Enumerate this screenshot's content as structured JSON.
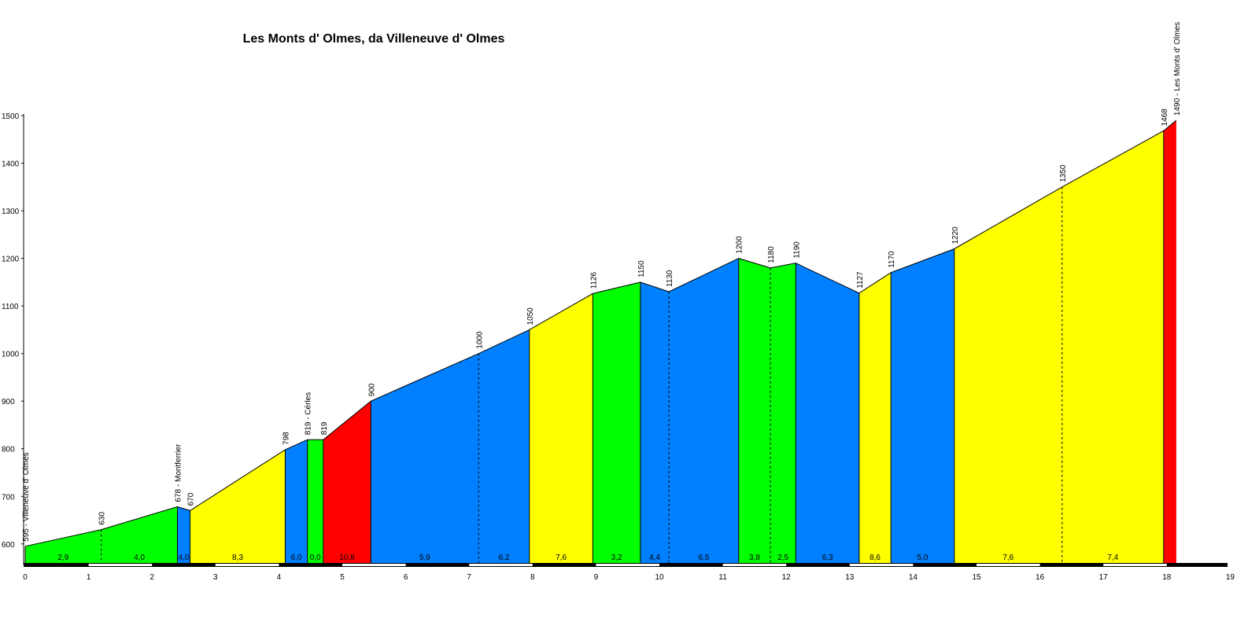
{
  "chart_data": {
    "type": "area",
    "title": "Les Monts d' Olmes, da Villeneuve d' Olmes",
    "xlim": [
      0,
      19
    ],
    "ylim": [
      560,
      1500
    ],
    "x_ticks": [
      "0",
      "1",
      "2",
      "3",
      "4",
      "5",
      "6",
      "7",
      "8",
      "9",
      "10",
      "11",
      "12",
      "13",
      "14",
      "15",
      "16",
      "17",
      "18",
      "19"
    ],
    "y_ticks": [
      "600",
      "700",
      "800",
      "900",
      "1000",
      "1100",
      "1200",
      "1300",
      "1400",
      "1500"
    ],
    "grade_colors": {
      "green": "#00ff00",
      "blue": "#0080ff",
      "yellow": "#ffff00",
      "red": "#ff0000"
    },
    "points": [
      {
        "x": 0.0,
        "y": 595,
        "label": "595 - Villeneuve d' Olmes"
      },
      {
        "x": 1.2,
        "y": 630,
        "label": "630"
      },
      {
        "x": 2.4,
        "y": 678,
        "label": "678 - Montferrier"
      },
      {
        "x": 2.6,
        "y": 670,
        "label": "670"
      },
      {
        "x": 4.1,
        "y": 798,
        "label": "798"
      },
      {
        "x": 4.45,
        "y": 819,
        "label": "819 - Cérles"
      },
      {
        "x": 4.7,
        "y": 819,
        "label": "819"
      },
      {
        "x": 5.45,
        "y": 900,
        "label": "900"
      },
      {
        "x": 7.15,
        "y": 1000,
        "label": "1000"
      },
      {
        "x": 7.95,
        "y": 1050,
        "label": "1050"
      },
      {
        "x": 8.95,
        "y": 1126,
        "label": "1126"
      },
      {
        "x": 9.7,
        "y": 1150,
        "label": "1150"
      },
      {
        "x": 10.15,
        "y": 1130,
        "label": "1130"
      },
      {
        "x": 11.25,
        "y": 1200,
        "label": "1200"
      },
      {
        "x": 11.75,
        "y": 1180,
        "label": "1180"
      },
      {
        "x": 12.15,
        "y": 1190,
        "label": "1190"
      },
      {
        "x": 13.15,
        "y": 1127,
        "label": "1127"
      },
      {
        "x": 13.65,
        "y": 1170,
        "label": "1170"
      },
      {
        "x": 14.65,
        "y": 1220,
        "label": "1220"
      },
      {
        "x": 16.35,
        "y": 1350,
        "label": "1350"
      },
      {
        "x": 17.95,
        "y": 1468,
        "label": "1468"
      },
      {
        "x": 18.15,
        "y": 1490,
        "label": "1490 - Les Monts d' Olmes"
      }
    ],
    "segments": [
      {
        "label": "2,9",
        "color": "green"
      },
      {
        "label": "4,0",
        "color": "green"
      },
      {
        "label": "4,0",
        "color": "blue"
      },
      {
        "label": "8,3",
        "color": "yellow"
      },
      {
        "label": "6,0",
        "color": "blue"
      },
      {
        "label": "0,0",
        "color": "green"
      },
      {
        "label": "10,8",
        "color": "red"
      },
      {
        "label": "5,9",
        "color": "blue"
      },
      {
        "label": "6,2",
        "color": "blue"
      },
      {
        "label": "7,6",
        "color": "yellow"
      },
      {
        "label": "3,2",
        "color": "green"
      },
      {
        "label": "4,4",
        "color": "blue"
      },
      {
        "label": "6,5",
        "color": "blue"
      },
      {
        "label": "3,8",
        "color": "green"
      },
      {
        "label": "2,5",
        "color": "green"
      },
      {
        "label": "6,3",
        "color": "blue"
      },
      {
        "label": "8,6",
        "color": "yellow"
      },
      {
        "label": "5,0",
        "color": "blue"
      },
      {
        "label": "7,6",
        "color": "yellow"
      },
      {
        "label": "7,4",
        "color": "yellow"
      },
      {
        "label": "",
        "color": "red"
      }
    ],
    "split_marker_before_segments": [
      1,
      8,
      19
    ]
  }
}
